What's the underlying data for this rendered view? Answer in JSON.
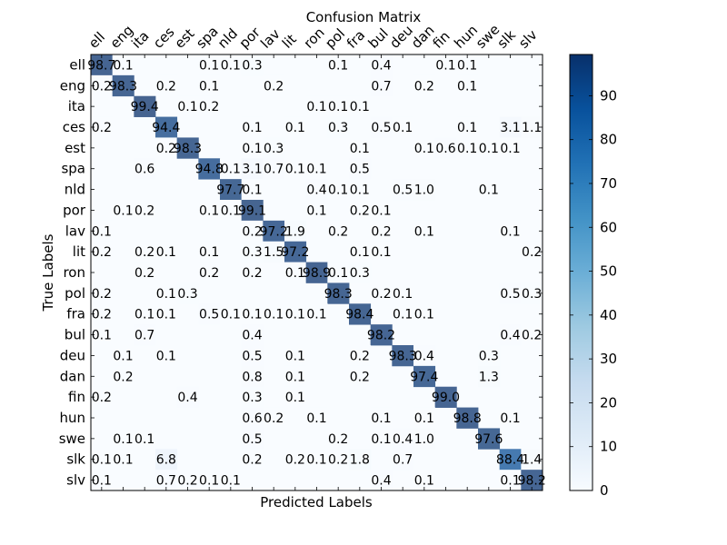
{
  "chart_data": {
    "type": "heatmap",
    "title": "Confusion Matrix",
    "xlabel": "Predicted Labels",
    "ylabel": "True Labels",
    "labels": [
      "ell",
      "eng",
      "ita",
      "ces",
      "est",
      "spa",
      "nld",
      "por",
      "lav",
      "lit",
      "ron",
      "pol",
      "fra",
      "bul",
      "deu",
      "dan",
      "fin",
      "hun",
      "swe",
      "slk",
      "slv"
    ],
    "cells": [
      {
        "r": 0,
        "c": 0,
        "v": "98.7"
      },
      {
        "r": 0,
        "c": 1,
        "v": "0.1"
      },
      {
        "r": 0,
        "c": 5,
        "v": "0.1"
      },
      {
        "r": 0,
        "c": 6,
        "v": "0.1"
      },
      {
        "r": 0,
        "c": 7,
        "v": "0.3"
      },
      {
        "r": 0,
        "c": 11,
        "v": "0.1"
      },
      {
        "r": 0,
        "c": 13,
        "v": "0.4"
      },
      {
        "r": 0,
        "c": 16,
        "v": "0.1"
      },
      {
        "r": 0,
        "c": 17,
        "v": "0.1"
      },
      {
        "r": 1,
        "c": 0,
        "v": "0.2"
      },
      {
        "r": 1,
        "c": 1,
        "v": "98.3"
      },
      {
        "r": 1,
        "c": 3,
        "v": "0.2"
      },
      {
        "r": 1,
        "c": 5,
        "v": "0.1"
      },
      {
        "r": 1,
        "c": 8,
        "v": "0.2"
      },
      {
        "r": 1,
        "c": 13,
        "v": "0.7"
      },
      {
        "r": 1,
        "c": 15,
        "v": "0.2"
      },
      {
        "r": 1,
        "c": 17,
        "v": "0.1"
      },
      {
        "r": 2,
        "c": 2,
        "v": "99.4"
      },
      {
        "r": 2,
        "c": 4,
        "v": "0.1"
      },
      {
        "r": 2,
        "c": 5,
        "v": "0.2"
      },
      {
        "r": 2,
        "c": 10,
        "v": "0.1"
      },
      {
        "r": 2,
        "c": 11,
        "v": "0.1"
      },
      {
        "r": 2,
        "c": 12,
        "v": "0.1"
      },
      {
        "r": 3,
        "c": 0,
        "v": "0.2"
      },
      {
        "r": 3,
        "c": 3,
        "v": "94.4"
      },
      {
        "r": 3,
        "c": 7,
        "v": "0.1"
      },
      {
        "r": 3,
        "c": 9,
        "v": "0.1"
      },
      {
        "r": 3,
        "c": 11,
        "v": "0.3"
      },
      {
        "r": 3,
        "c": 13,
        "v": "0.5"
      },
      {
        "r": 3,
        "c": 14,
        "v": "0.1"
      },
      {
        "r": 3,
        "c": 17,
        "v": "0.1"
      },
      {
        "r": 3,
        "c": 19,
        "v": "3.1"
      },
      {
        "r": 3,
        "c": 20,
        "v": "1.1"
      },
      {
        "r": 4,
        "c": 3,
        "v": "0.2"
      },
      {
        "r": 4,
        "c": 4,
        "v": "98.3"
      },
      {
        "r": 4,
        "c": 7,
        "v": "0.1"
      },
      {
        "r": 4,
        "c": 8,
        "v": "0.3"
      },
      {
        "r": 4,
        "c": 12,
        "v": "0.1"
      },
      {
        "r": 4,
        "c": 15,
        "v": "0.1"
      },
      {
        "r": 4,
        "c": 16,
        "v": "0.6"
      },
      {
        "r": 4,
        "c": 17,
        "v": "0.1"
      },
      {
        "r": 4,
        "c": 18,
        "v": "0.1"
      },
      {
        "r": 4,
        "c": 19,
        "v": "0.1"
      },
      {
        "r": 5,
        "c": 2,
        "v": "0.6"
      },
      {
        "r": 5,
        "c": 5,
        "v": "94.8"
      },
      {
        "r": 5,
        "c": 6,
        "v": "0.1"
      },
      {
        "r": 5,
        "c": 7,
        "v": "3.1"
      },
      {
        "r": 5,
        "c": 8,
        "v": "0.7"
      },
      {
        "r": 5,
        "c": 9,
        "v": "0.1"
      },
      {
        "r": 5,
        "c": 10,
        "v": "0.1"
      },
      {
        "r": 5,
        "c": 12,
        "v": "0.5"
      },
      {
        "r": 6,
        "c": 6,
        "v": "97.7"
      },
      {
        "r": 6,
        "c": 7,
        "v": "0.1"
      },
      {
        "r": 6,
        "c": 10,
        "v": "0.4"
      },
      {
        "r": 6,
        "c": 11,
        "v": "0.1"
      },
      {
        "r": 6,
        "c": 12,
        "v": "0.1"
      },
      {
        "r": 6,
        "c": 14,
        "v": "0.5"
      },
      {
        "r": 6,
        "c": 15,
        "v": "1.0"
      },
      {
        "r": 6,
        "c": 18,
        "v": "0.1"
      },
      {
        "r": 7,
        "c": 1,
        "v": "0.1"
      },
      {
        "r": 7,
        "c": 2,
        "v": "0.2"
      },
      {
        "r": 7,
        "c": 5,
        "v": "0.1"
      },
      {
        "r": 7,
        "c": 6,
        "v": "0.1"
      },
      {
        "r": 7,
        "c": 7,
        "v": "99.1"
      },
      {
        "r": 7,
        "c": 10,
        "v": "0.1"
      },
      {
        "r": 7,
        "c": 12,
        "v": "0.2"
      },
      {
        "r": 7,
        "c": 13,
        "v": "0.1"
      },
      {
        "r": 8,
        "c": 0,
        "v": "0.1"
      },
      {
        "r": 8,
        "c": 7,
        "v": "0.2"
      },
      {
        "r": 8,
        "c": 8,
        "v": "97.2"
      },
      {
        "r": 8,
        "c": 9,
        "v": "1.9"
      },
      {
        "r": 8,
        "c": 11,
        "v": "0.2"
      },
      {
        "r": 8,
        "c": 13,
        "v": "0.2"
      },
      {
        "r": 8,
        "c": 15,
        "v": "0.1"
      },
      {
        "r": 8,
        "c": 19,
        "v": "0.1"
      },
      {
        "r": 9,
        "c": 0,
        "v": "0.2"
      },
      {
        "r": 9,
        "c": 2,
        "v": "0.2"
      },
      {
        "r": 9,
        "c": 3,
        "v": "0.1"
      },
      {
        "r": 9,
        "c": 5,
        "v": "0.1"
      },
      {
        "r": 9,
        "c": 7,
        "v": "0.3"
      },
      {
        "r": 9,
        "c": 8,
        "v": "1.5"
      },
      {
        "r": 9,
        "c": 9,
        "v": "97.2"
      },
      {
        "r": 9,
        "c": 12,
        "v": "0.1"
      },
      {
        "r": 9,
        "c": 13,
        "v": "0.1"
      },
      {
        "r": 9,
        "c": 20,
        "v": "0.2"
      },
      {
        "r": 10,
        "c": 2,
        "v": "0.2"
      },
      {
        "r": 10,
        "c": 5,
        "v": "0.2"
      },
      {
        "r": 10,
        "c": 7,
        "v": "0.2"
      },
      {
        "r": 10,
        "c": 9,
        "v": "0.1"
      },
      {
        "r": 10,
        "c": 10,
        "v": "98.9"
      },
      {
        "r": 10,
        "c": 11,
        "v": "0.1"
      },
      {
        "r": 10,
        "c": 12,
        "v": "0.3"
      },
      {
        "r": 11,
        "c": 0,
        "v": "0.2"
      },
      {
        "r": 11,
        "c": 3,
        "v": "0.1"
      },
      {
        "r": 11,
        "c": 4,
        "v": "0.3"
      },
      {
        "r": 11,
        "c": 11,
        "v": "98.3"
      },
      {
        "r": 11,
        "c": 13,
        "v": "0.2"
      },
      {
        "r": 11,
        "c": 14,
        "v": "0.1"
      },
      {
        "r": 11,
        "c": 19,
        "v": "0.5"
      },
      {
        "r": 11,
        "c": 20,
        "v": "0.3"
      },
      {
        "r": 12,
        "c": 0,
        "v": "0.2"
      },
      {
        "r": 12,
        "c": 2,
        "v": "0.1"
      },
      {
        "r": 12,
        "c": 3,
        "v": "0.1"
      },
      {
        "r": 12,
        "c": 5,
        "v": "0.5"
      },
      {
        "r": 12,
        "c": 6,
        "v": "0.1"
      },
      {
        "r": 12,
        "c": 7,
        "v": "0.1"
      },
      {
        "r": 12,
        "c": 8,
        "v": "0.1"
      },
      {
        "r": 12,
        "c": 9,
        "v": "0.1"
      },
      {
        "r": 12,
        "c": 10,
        "v": "0.1"
      },
      {
        "r": 12,
        "c": 12,
        "v": "98.4"
      },
      {
        "r": 12,
        "c": 14,
        "v": "0.1"
      },
      {
        "r": 12,
        "c": 15,
        "v": "0.1"
      },
      {
        "r": 13,
        "c": 0,
        "v": "0.1"
      },
      {
        "r": 13,
        "c": 2,
        "v": "0.7"
      },
      {
        "r": 13,
        "c": 7,
        "v": "0.4"
      },
      {
        "r": 13,
        "c": 13,
        "v": "98.2"
      },
      {
        "r": 13,
        "c": 19,
        "v": "0.4"
      },
      {
        "r": 13,
        "c": 20,
        "v": "0.2"
      },
      {
        "r": 14,
        "c": 1,
        "v": "0.1"
      },
      {
        "r": 14,
        "c": 3,
        "v": "0.1"
      },
      {
        "r": 14,
        "c": 7,
        "v": "0.5"
      },
      {
        "r": 14,
        "c": 9,
        "v": "0.1"
      },
      {
        "r": 14,
        "c": 12,
        "v": "0.2"
      },
      {
        "r": 14,
        "c": 14,
        "v": "98.3"
      },
      {
        "r": 14,
        "c": 15,
        "v": "0.4"
      },
      {
        "r": 14,
        "c": 18,
        "v": "0.3"
      },
      {
        "r": 15,
        "c": 1,
        "v": "0.2"
      },
      {
        "r": 15,
        "c": 7,
        "v": "0.8"
      },
      {
        "r": 15,
        "c": 9,
        "v": "0.1"
      },
      {
        "r": 15,
        "c": 12,
        "v": "0.2"
      },
      {
        "r": 15,
        "c": 15,
        "v": "97.4"
      },
      {
        "r": 15,
        "c": 18,
        "v": "1.3"
      },
      {
        "r": 16,
        "c": 0,
        "v": "0.2"
      },
      {
        "r": 16,
        "c": 4,
        "v": "0.4"
      },
      {
        "r": 16,
        "c": 7,
        "v": "0.3"
      },
      {
        "r": 16,
        "c": 9,
        "v": "0.1"
      },
      {
        "r": 16,
        "c": 16,
        "v": "99.0"
      },
      {
        "r": 17,
        "c": 7,
        "v": "0.6"
      },
      {
        "r": 17,
        "c": 8,
        "v": "0.2"
      },
      {
        "r": 17,
        "c": 10,
        "v": "0.1"
      },
      {
        "r": 17,
        "c": 13,
        "v": "0.1"
      },
      {
        "r": 17,
        "c": 15,
        "v": "0.1"
      },
      {
        "r": 17,
        "c": 17,
        "v": "98.8"
      },
      {
        "r": 17,
        "c": 19,
        "v": "0.1"
      },
      {
        "r": 18,
        "c": 1,
        "v": "0.1"
      },
      {
        "r": 18,
        "c": 2,
        "v": "0.1"
      },
      {
        "r": 18,
        "c": 7,
        "v": "0.5"
      },
      {
        "r": 18,
        "c": 11,
        "v": "0.2"
      },
      {
        "r": 18,
        "c": 13,
        "v": "0.1"
      },
      {
        "r": 18,
        "c": 14,
        "v": "0.4"
      },
      {
        "r": 18,
        "c": 15,
        "v": "1.0"
      },
      {
        "r": 18,
        "c": 18,
        "v": "97.6"
      },
      {
        "r": 19,
        "c": 0,
        "v": "0.1"
      },
      {
        "r": 19,
        "c": 1,
        "v": "0.1"
      },
      {
        "r": 19,
        "c": 3,
        "v": "6.8"
      },
      {
        "r": 19,
        "c": 7,
        "v": "0.2"
      },
      {
        "r": 19,
        "c": 9,
        "v": "0.2"
      },
      {
        "r": 19,
        "c": 10,
        "v": "0.1"
      },
      {
        "r": 19,
        "c": 11,
        "v": "0.2"
      },
      {
        "r": 19,
        "c": 12,
        "v": "1.8"
      },
      {
        "r": 19,
        "c": 14,
        "v": "0.7"
      },
      {
        "r": 19,
        "c": 19,
        "v": "88.4"
      },
      {
        "r": 19,
        "c": 20,
        "v": "1.4"
      },
      {
        "r": 20,
        "c": 0,
        "v": "0.1"
      },
      {
        "r": 20,
        "c": 3,
        "v": "0.7"
      },
      {
        "r": 20,
        "c": 4,
        "v": "0.2"
      },
      {
        "r": 20,
        "c": 5,
        "v": "0.1"
      },
      {
        "r": 20,
        "c": 6,
        "v": "0.1"
      },
      {
        "r": 20,
        "c": 13,
        "v": "0.4"
      },
      {
        "r": 20,
        "c": 15,
        "v": "0.1"
      },
      {
        "r": 20,
        "c": 19,
        "v": "0.1"
      },
      {
        "r": 20,
        "c": 20,
        "v": "98.2"
      }
    ],
    "colorbar": {
      "min": 0,
      "max": 99.4,
      "ticks": [
        0,
        10,
        20,
        30,
        40,
        50,
        60,
        70,
        80,
        90
      ]
    },
    "colors": {
      "low": "#f7fbff",
      "high": "#08306b",
      "map": "Blues"
    },
    "legend": "none",
    "grid": false
  }
}
